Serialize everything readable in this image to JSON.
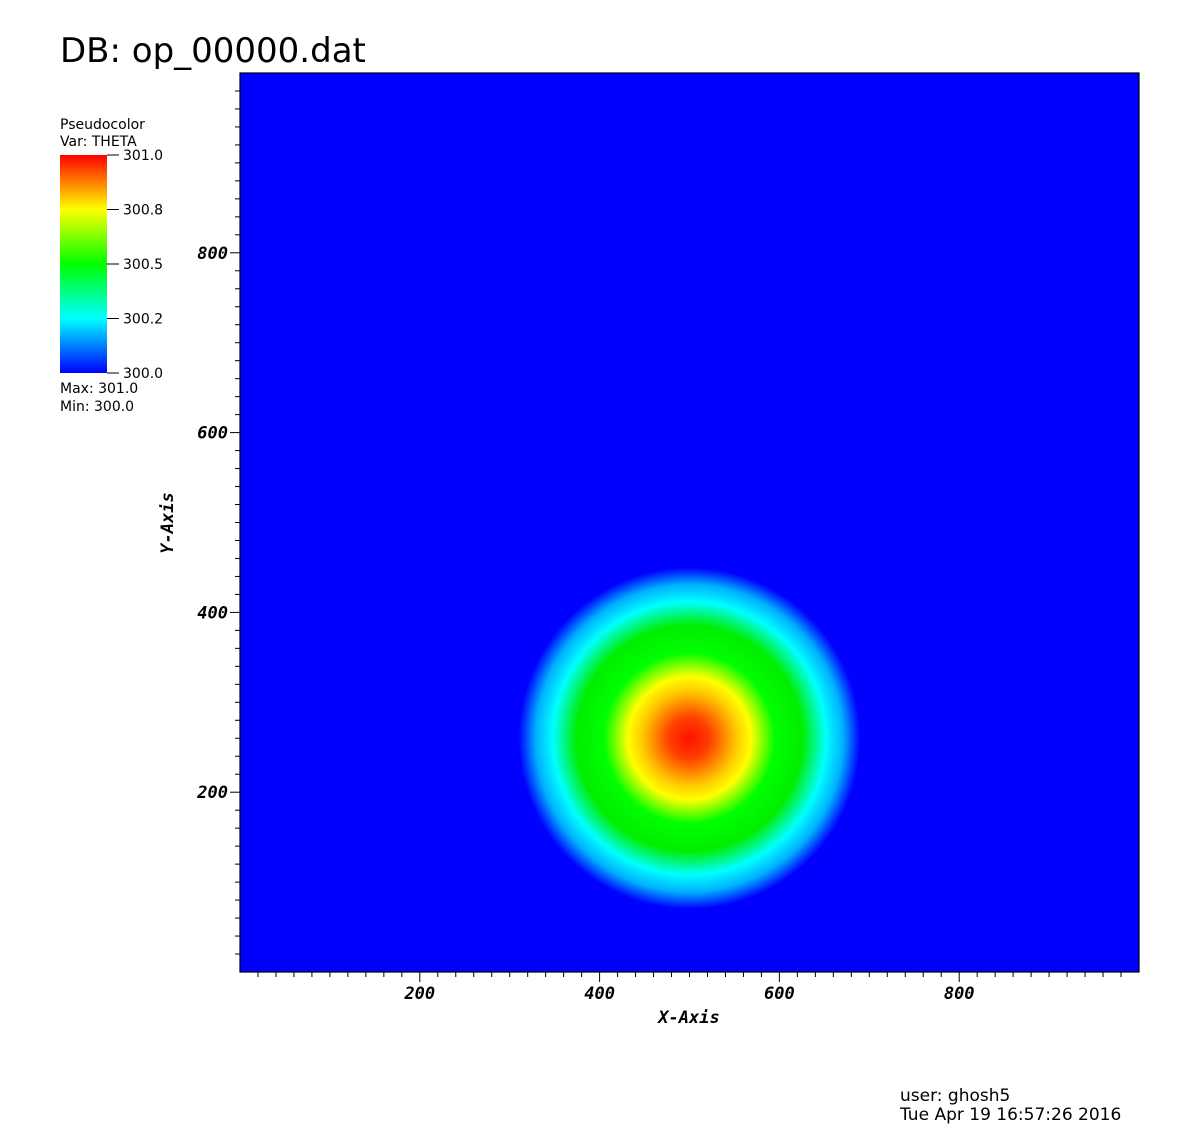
{
  "header": {
    "title": "DB: op_00000.dat"
  },
  "legend": {
    "plot_type": "Pseudocolor",
    "variable_label": "Var: THETA",
    "ticks": [
      "301.0",
      "300.8",
      "300.5",
      "300.2",
      "300.0"
    ],
    "tick_values": [
      301.0,
      300.75,
      300.5,
      300.25,
      300.0
    ],
    "max_label": "Max:  301.0",
    "min_label": "Min:  300.0",
    "colormap": [
      "#0000ff",
      "#00ffff",
      "#00ff00",
      "#ffff00",
      "#ff0000"
    ]
  },
  "footer": {
    "user": "user: ghosh5",
    "timestamp": "Tue Apr 19 16:57:26 2016"
  },
  "chart_data": {
    "type": "heatmap",
    "title": "DB: op_00000.dat",
    "xlabel": "X-Axis",
    "ylabel": "Y-Axis",
    "xlim": [
      0,
      1000
    ],
    "ylim": [
      0,
      1000
    ],
    "x_ticks": [
      200,
      400,
      600,
      800
    ],
    "y_ticks": [
      200,
      400,
      600,
      800
    ],
    "variable": "THETA",
    "value_range": [
      300.0,
      301.0
    ],
    "background_value": 300.0,
    "field": {
      "shape": "radial bubble",
      "center": [
        500,
        260
      ],
      "peak_value": 301.0,
      "radius": 190
    },
    "grid": false
  }
}
